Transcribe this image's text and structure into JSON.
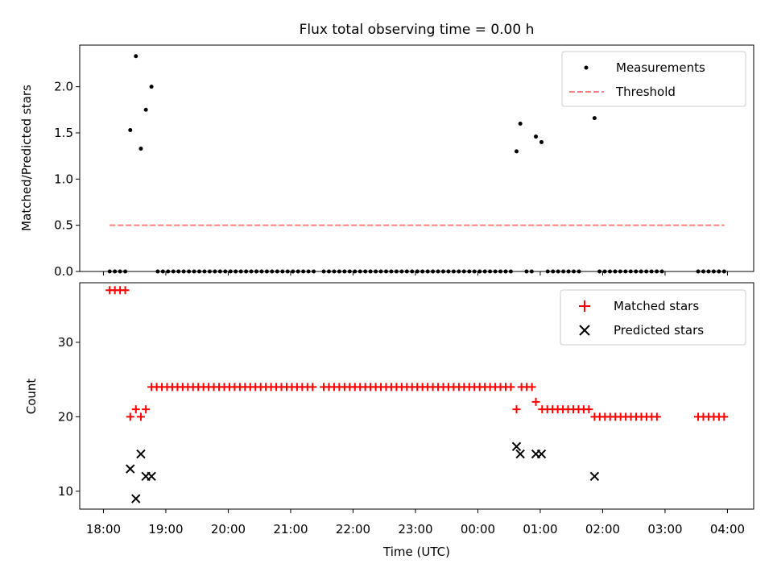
{
  "title": "Flux total observing time = 0.00 h",
  "x_label": "Time (UTC)",
  "x_ticks": [
    {
      "label": "18:00",
      "hour": 18
    },
    {
      "label": "19:00",
      "hour": 19
    },
    {
      "label": "20:00",
      "hour": 20
    },
    {
      "label": "21:00",
      "hour": 21
    },
    {
      "label": "22:00",
      "hour": 22
    },
    {
      "label": "23:00",
      "hour": 23
    },
    {
      "label": "00:00",
      "hour": 24
    },
    {
      "label": "01:00",
      "hour": 25
    },
    {
      "label": "02:00",
      "hour": 26
    },
    {
      "label": "03:00",
      "hour": 27
    },
    {
      "label": "04:00",
      "hour": 28
    }
  ],
  "x_range_hours": [
    17.62,
    28.42
  ],
  "chart_data": [
    {
      "type": "scatter",
      "panel": "top",
      "ylabel": "Matched/Predicted stars",
      "ylim": [
        0,
        2.45
      ],
      "yticks": [
        0.0,
        0.5,
        1.0,
        1.5,
        2.0
      ],
      "yticklabels": [
        "0.0",
        "0.5",
        "1.0",
        "1.5",
        "2.0"
      ],
      "legend_position": "top-right",
      "series": [
        {
          "name": "Measurements",
          "color": "#000000",
          "marker": "dot",
          "zero_runs": [
            {
              "start": 18.1,
              "end": 18.37,
              "step": 0.0833
            },
            {
              "start": 18.87,
              "end": 21.37,
              "step": 0.0833
            },
            {
              "start": 21.53,
              "end": 24.53,
              "step": 0.0833
            },
            {
              "start": 24.78,
              "end": 24.87,
              "step": 0.0833
            },
            {
              "start": 25.12,
              "end": 25.7,
              "step": 0.0833
            },
            {
              "start": 25.95,
              "end": 26.95,
              "step": 0.0833
            },
            {
              "start": 27.53,
              "end": 27.95,
              "step": 0.0833
            }
          ],
          "points": [
            {
              "x": 18.43,
              "y": 1.53
            },
            {
              "x": 18.52,
              "y": 2.33
            },
            {
              "x": 18.6,
              "y": 1.33
            },
            {
              "x": 18.68,
              "y": 1.75
            },
            {
              "x": 18.77,
              "y": 2.0
            },
            {
              "x": 24.62,
              "y": 1.3
            },
            {
              "x": 24.68,
              "y": 1.6
            },
            {
              "x": 24.93,
              "y": 1.46
            },
            {
              "x": 25.02,
              "y": 1.4
            },
            {
              "x": 25.87,
              "y": 1.66
            }
          ]
        },
        {
          "name": "Threshold",
          "color": "#ff7f7f",
          "style": "dashed-line",
          "x": [
            18.1,
            27.95
          ],
          "y": [
            0.5,
            0.5
          ]
        }
      ]
    },
    {
      "type": "scatter",
      "panel": "bottom",
      "ylabel": "Count",
      "ylim": [
        7.6,
        38.0
      ],
      "yticks": [
        10,
        20,
        30
      ],
      "yticklabels": [
        "10",
        "20",
        "30"
      ],
      "legend_position": "top-right",
      "series": [
        {
          "name": "Matched stars",
          "color": "#ff0000",
          "marker": "plus",
          "runs": [
            {
              "start": 18.1,
              "end": 18.37,
              "step": 0.0833,
              "y": 37
            },
            {
              "start": 18.77,
              "end": 21.37,
              "step": 0.0833,
              "y": 24
            },
            {
              "start": 21.53,
              "end": 24.53,
              "step": 0.0833,
              "y": 24
            },
            {
              "start": 24.7,
              "end": 24.87,
              "step": 0.0833,
              "y": 24
            },
            {
              "start": 25.03,
              "end": 25.78,
              "step": 0.0833,
              "y": 21
            },
            {
              "start": 25.87,
              "end": 26.95,
              "step": 0.0833,
              "y": 20
            },
            {
              "start": 27.53,
              "end": 27.95,
              "step": 0.0833,
              "y": 20
            }
          ],
          "points": [
            {
              "x": 18.43,
              "y": 20
            },
            {
              "x": 18.52,
              "y": 21
            },
            {
              "x": 18.6,
              "y": 20
            },
            {
              "x": 18.68,
              "y": 21
            },
            {
              "x": 24.62,
              "y": 21
            },
            {
              "x": 24.93,
              "y": 22
            }
          ]
        },
        {
          "name": "Predicted stars",
          "color": "#000000",
          "marker": "x",
          "points": [
            {
              "x": 18.43,
              "y": 13
            },
            {
              "x": 18.52,
              "y": 9
            },
            {
              "x": 18.6,
              "y": 15
            },
            {
              "x": 18.68,
              "y": 12
            },
            {
              "x": 18.77,
              "y": 12
            },
            {
              "x": 24.62,
              "y": 16
            },
            {
              "x": 24.68,
              "y": 15
            },
            {
              "x": 24.93,
              "y": 15
            },
            {
              "x": 25.02,
              "y": 15
            },
            {
              "x": 25.87,
              "y": 12
            }
          ]
        }
      ]
    }
  ]
}
